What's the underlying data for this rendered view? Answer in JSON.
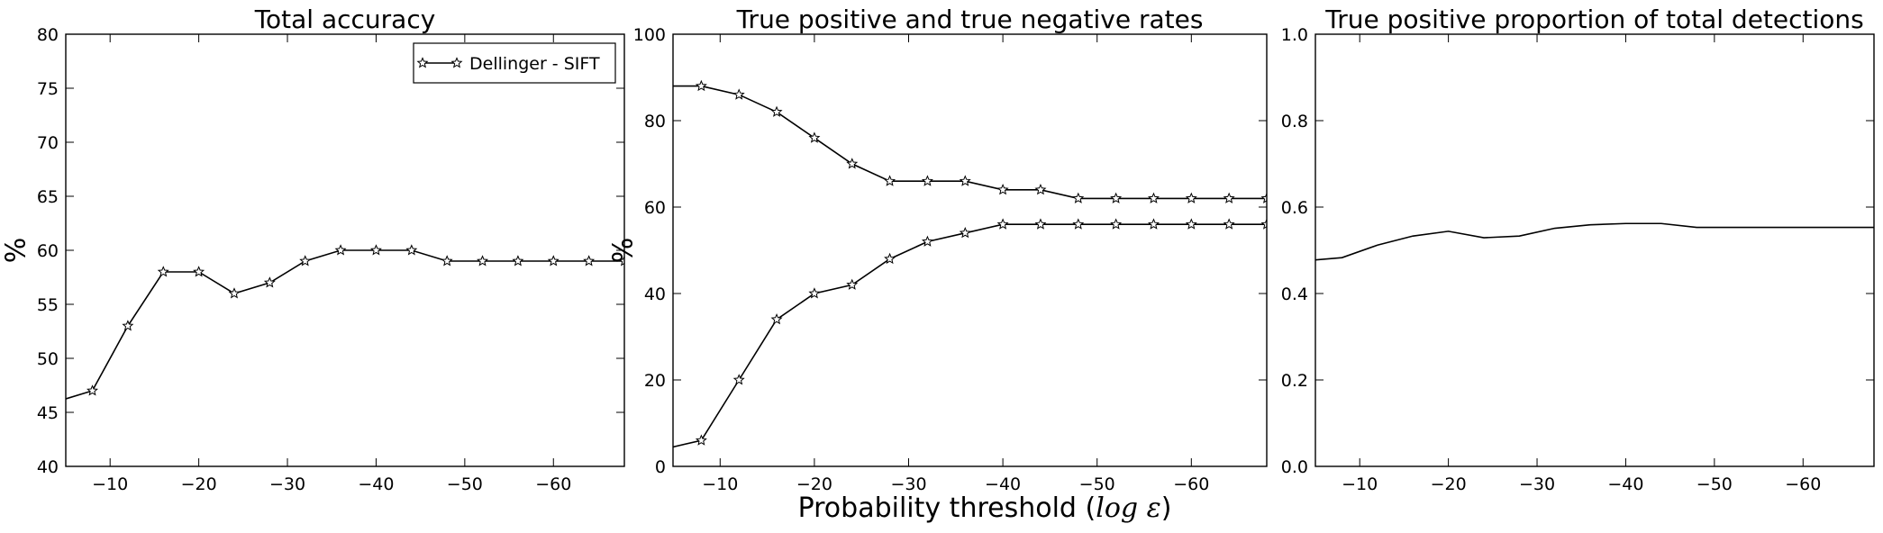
{
  "figure": {
    "shared_xlabel": "Probability threshold (log ε)"
  },
  "chart_data": [
    {
      "type": "line",
      "title": "Total accuracy",
      "xlabel": "",
      "ylabel": "%",
      "xlim": [
        -5,
        -68
      ],
      "ylim": [
        40,
        80
      ],
      "x_ticks": [
        -10,
        -20,
        -30,
        -40,
        -50,
        -60
      ],
      "x_tick_labels": [
        "−10",
        "−20",
        "−30",
        "−40",
        "−50",
        "−60"
      ],
      "y_ticks": [
        40,
        45,
        50,
        55,
        60,
        65,
        70,
        75,
        80
      ],
      "y_tick_labels": [
        "40",
        "45",
        "50",
        "55",
        "60",
        "65",
        "70",
        "75",
        "80"
      ],
      "grid": false,
      "legend": {
        "position": "top-right",
        "entries": [
          "Dellinger - SIFT"
        ]
      },
      "marker": "star",
      "color": "#000000",
      "series": [
        {
          "name": "Dellinger - SIFT",
          "x": [
            -4,
            -8,
            -12,
            -16,
            -20,
            -24,
            -28,
            -32,
            -36,
            -40,
            -44,
            -48,
            -52,
            -56,
            -60,
            -64,
            -68
          ],
          "y": [
            46,
            47,
            53,
            58,
            58,
            56,
            57,
            59,
            60,
            60,
            60,
            59,
            59,
            59,
            59,
            59,
            59
          ]
        }
      ]
    },
    {
      "type": "line",
      "title": "True positive and true negative rates",
      "xlabel": "",
      "ylabel": "%",
      "xlim": [
        -5,
        -68
      ],
      "ylim": [
        0,
        100
      ],
      "x_ticks": [
        -10,
        -20,
        -30,
        -40,
        -50,
        -60
      ],
      "x_tick_labels": [
        "−10",
        "−20",
        "−30",
        "−40",
        "−50",
        "−60"
      ],
      "y_ticks": [
        0,
        20,
        40,
        60,
        80,
        100
      ],
      "y_tick_labels": [
        "0",
        "20",
        "40",
        "60",
        "80",
        "100"
      ],
      "grid": false,
      "marker": "star",
      "color": "#000000",
      "series": [
        {
          "x": [
            -4,
            -8,
            -12,
            -16,
            -20,
            -24,
            -28,
            -32,
            -36,
            -40,
            -44,
            -48,
            -52,
            -56,
            -60,
            -64,
            -68
          ],
          "y": [
            88,
            88,
            86,
            82,
            76,
            70,
            66,
            66,
            66,
            64,
            64,
            62,
            62,
            62,
            62,
            62,
            62
          ]
        },
        {
          "x": [
            -4,
            -8,
            -12,
            -16,
            -20,
            -24,
            -28,
            -32,
            -36,
            -40,
            -44,
            -48,
            -52,
            -56,
            -60,
            -64,
            -68
          ],
          "y": [
            4,
            6,
            20,
            34,
            40,
            42,
            48,
            52,
            54,
            56,
            56,
            56,
            56,
            56,
            56,
            56,
            56
          ]
        }
      ]
    },
    {
      "type": "line",
      "title": "True positive proportion of total detections",
      "xlabel": "",
      "ylabel": "",
      "xlim": [
        -5,
        -68
      ],
      "ylim": [
        0,
        1
      ],
      "x_ticks": [
        -10,
        -20,
        -30,
        -40,
        -50,
        -60
      ],
      "x_tick_labels": [
        "−10",
        "−20",
        "−30",
        "−40",
        "−50",
        "−60"
      ],
      "y_ticks": [
        0,
        0.2,
        0.4,
        0.6,
        0.8,
        1
      ],
      "y_tick_labels": [
        "0.0",
        "0.2",
        "0.4",
        "0.6",
        "0.8",
        "1.0"
      ],
      "grid": false,
      "marker": "none",
      "color": "#000000",
      "series": [
        {
          "x": [
            -4,
            -8,
            -12,
            -16,
            -20,
            -24,
            -28,
            -32,
            -36,
            -40,
            -44,
            -48,
            -52,
            -56,
            -60,
            -64,
            -68
          ],
          "y": [
            0.476,
            0.483,
            0.512,
            0.533,
            0.544,
            0.529,
            0.533,
            0.551,
            0.559,
            0.562,
            0.562,
            0.553,
            0.553,
            0.553,
            0.553,
            0.553,
            0.553
          ]
        }
      ]
    }
  ]
}
